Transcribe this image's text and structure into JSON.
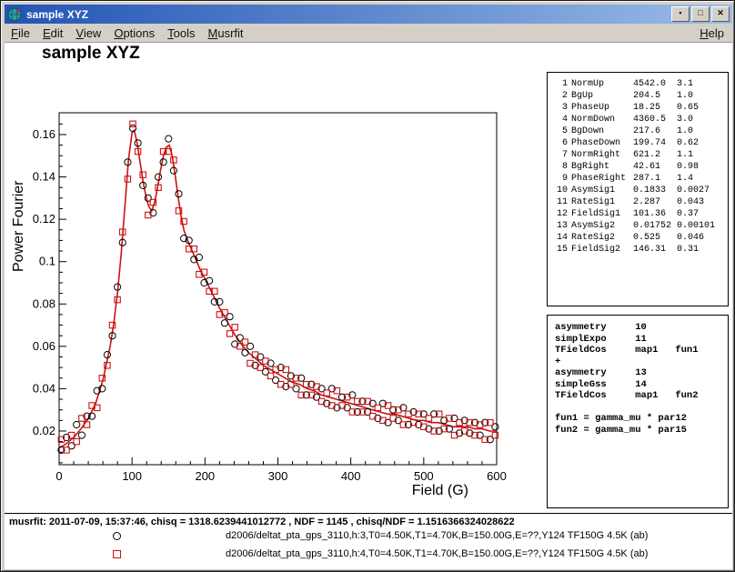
{
  "window": {
    "title": "sample XYZ"
  },
  "icons": {
    "minimize_glyph": "▪",
    "maximize_glyph": "□",
    "close_glyph": "✕"
  },
  "colors": {
    "titlebar_left": "#2254b4",
    "titlebar_right": "#9abce8",
    "accent_red": "#cc1111"
  },
  "menu": {
    "items": [
      "File",
      "Edit",
      "View",
      "Options",
      "Tools",
      "Musrfit"
    ],
    "help": "Help"
  },
  "canvas": {
    "title": "sample XYZ"
  },
  "params_panel": {
    "rows": [
      [
        "1",
        "NormUp",
        "4542.0",
        "3.1"
      ],
      [
        "2",
        "BgUp",
        "204.5",
        "1.0"
      ],
      [
        "3",
        "PhaseUp",
        "18.25",
        "0.65"
      ],
      [
        "4",
        "NormDown",
        "4360.5",
        "3.0"
      ],
      [
        "5",
        "BgDown",
        "217.6",
        "1.0"
      ],
      [
        "6",
        "PhaseDown",
        "199.74",
        "0.62"
      ],
      [
        "7",
        "NormRight",
        "621.2",
        "1.1"
      ],
      [
        "8",
        "BgRight",
        "42.61",
        "0.98"
      ],
      [
        "9",
        "PhaseRight",
        "287.1",
        "1.4"
      ],
      [
        "10",
        "AsymSig1",
        "0.1833",
        "0.0027"
      ],
      [
        "11",
        "RateSig1",
        "2.287",
        "0.043"
      ],
      [
        "12",
        "FieldSig1",
        "101.36",
        "0.37"
      ],
      [
        "13",
        "AsymSig2",
        "0.01752",
        "0.00101"
      ],
      [
        "14",
        "RateSig2",
        "0.525",
        "0.046"
      ],
      [
        "15",
        "FieldSig2",
        "146.31",
        "0.31"
      ]
    ]
  },
  "theory_panel": {
    "lines": [
      "asymmetry     10",
      "simplExpo     11",
      "TFieldCos     map1   fun1",
      "+",
      "asymmetry     13",
      "simpleGss     14",
      "TFieldCos     map1   fun2",
      "",
      "fun1 = gamma_mu * par12",
      "fun2 = gamma_mu * par15"
    ]
  },
  "status": {
    "text": "musrfit: 2011-07-09, 15:37:46, chisq = 1318.6239441012772 , NDF = 1145 , chisq/NDF = 1.1516366324028622"
  },
  "chart_data": {
    "type": "scatter",
    "title": "sample XYZ",
    "xlabel": "Field (G)",
    "ylabel": "Power Fourier",
    "xlim": [
      0,
      600
    ],
    "ylim": [
      0.0041,
      0.1703
    ],
    "x_ticks": [
      0,
      100,
      200,
      300,
      400,
      500,
      600
    ],
    "y_ticks": [
      0.02,
      0.04,
      0.06,
      0.08,
      0.1,
      0.12,
      0.14,
      0.16
    ],
    "y_tick_labels": [
      "0.02",
      "0.04",
      "0.06",
      "0.08",
      "0.1",
      "0.12",
      "0.14",
      "0.16"
    ],
    "grid": false,
    "legend_position": "bottom",
    "x": [
      3,
      10,
      17,
      24,
      31,
      38,
      45,
      52,
      59,
      66,
      73,
      80,
      87,
      94,
      101,
      108,
      115,
      122,
      129,
      136,
      143,
      150,
      157,
      164,
      171,
      178,
      185,
      192,
      199,
      206,
      213,
      220,
      227,
      234,
      241,
      248,
      255,
      262,
      269,
      276,
      283,
      290,
      297,
      304,
      311,
      318,
      325,
      332,
      339,
      346,
      353,
      360,
      367,
      374,
      381,
      388,
      395,
      402,
      409,
      416,
      423,
      430,
      437,
      444,
      451,
      458,
      465,
      472,
      479,
      486,
      493,
      500,
      507,
      514,
      521,
      528,
      535,
      542,
      549,
      556,
      563,
      570,
      577,
      584,
      591,
      598
    ],
    "series": [
      {
        "name": "d2006/deltat_pta_gps_3110,h:3,T0=4.50K,T1=4.70K,B=150.00G,E=??,Y124 TF150G 4.5K (ab)",
        "marker": "circle",
        "color": "#000000",
        "values": [
          0.011,
          0.017,
          0.013,
          0.023,
          0.018,
          0.027,
          0.027,
          0.039,
          0.04,
          0.056,
          0.065,
          0.088,
          0.109,
          0.147,
          0.163,
          0.156,
          0.136,
          0.13,
          0.123,
          0.14,
          0.147,
          0.158,
          0.143,
          0.132,
          0.111,
          0.11,
          0.101,
          0.102,
          0.09,
          0.091,
          0.081,
          0.081,
          0.071,
          0.074,
          0.061,
          0.064,
          0.057,
          0.06,
          0.051,
          0.055,
          0.048,
          0.052,
          0.044,
          0.05,
          0.041,
          0.046,
          0.04,
          0.045,
          0.037,
          0.042,
          0.036,
          0.04,
          0.033,
          0.04,
          0.031,
          0.036,
          0.031,
          0.037,
          0.029,
          0.034,
          0.029,
          0.033,
          0.026,
          0.033,
          0.024,
          0.03,
          0.025,
          0.031,
          0.023,
          0.029,
          0.023,
          0.028,
          0.021,
          0.028,
          0.02,
          0.025,
          0.021,
          0.026,
          0.019,
          0.025,
          0.019,
          0.024,
          0.018,
          0.024,
          0.016,
          0.022
        ]
      },
      {
        "name": "d2006/deltat_pta_gps_3110,h:4,T0=4.50K,T1=4.70K,B=150.00G,E=??,Y124 TF150G 4.5K (ab)",
        "marker": "square",
        "color": "#cc1111",
        "values": [
          0.016,
          0.011,
          0.018,
          0.015,
          0.026,
          0.023,
          0.032,
          0.031,
          0.045,
          0.051,
          0.07,
          0.082,
          0.114,
          0.139,
          0.165,
          0.152,
          0.141,
          0.122,
          0.128,
          0.135,
          0.152,
          0.152,
          0.148,
          0.124,
          0.119,
          0.106,
          0.106,
          0.094,
          0.095,
          0.086,
          0.086,
          0.075,
          0.076,
          0.066,
          0.069,
          0.06,
          0.062,
          0.052,
          0.056,
          0.05,
          0.053,
          0.046,
          0.049,
          0.042,
          0.049,
          0.042,
          0.045,
          0.037,
          0.042,
          0.037,
          0.041,
          0.034,
          0.038,
          0.032,
          0.039,
          0.032,
          0.036,
          0.029,
          0.034,
          0.029,
          0.034,
          0.027,
          0.031,
          0.025,
          0.032,
          0.026,
          0.03,
          0.023,
          0.028,
          0.024,
          0.028,
          0.022,
          0.026,
          0.02,
          0.028,
          0.021,
          0.026,
          0.018,
          0.024,
          0.02,
          0.024,
          0.018,
          0.023,
          0.016,
          0.024,
          0.018
        ]
      }
    ],
    "fit": {
      "color": "#cc1111",
      "x": [
        0,
        10,
        20,
        30,
        40,
        50,
        60,
        70,
        75,
        80,
        85,
        90,
        95,
        100,
        103,
        107,
        111,
        115,
        119,
        123,
        127,
        131,
        135,
        139,
        143,
        147,
        151,
        155,
        159,
        163,
        167,
        171,
        175,
        180,
        185,
        190,
        195,
        200,
        210,
        220,
        230,
        240,
        250,
        260,
        270,
        280,
        290,
        300,
        310,
        320,
        330,
        340,
        350,
        360,
        370,
        380,
        390,
        400,
        410,
        420,
        430,
        440,
        450,
        460,
        470,
        480,
        490,
        500,
        510,
        520,
        530,
        540,
        550,
        560,
        570,
        580,
        590,
        600
      ],
      "y": [
        0.012,
        0.014,
        0.017,
        0.021,
        0.026,
        0.033,
        0.044,
        0.06,
        0.071,
        0.085,
        0.103,
        0.125,
        0.148,
        0.161,
        0.162,
        0.156,
        0.147,
        0.138,
        0.131,
        0.126,
        0.124,
        0.128,
        0.135,
        0.143,
        0.15,
        0.154,
        0.155,
        0.15,
        0.141,
        0.131,
        0.122,
        0.115,
        0.111,
        0.107,
        0.103,
        0.099,
        0.095,
        0.092,
        0.085,
        0.078,
        0.072,
        0.066,
        0.061,
        0.057,
        0.054,
        0.051,
        0.049,
        0.047,
        0.045,
        0.043,
        0.042,
        0.04,
        0.039,
        0.037,
        0.036,
        0.035,
        0.034,
        0.033,
        0.032,
        0.031,
        0.03,
        0.029,
        0.028,
        0.028,
        0.027,
        0.026,
        0.025,
        0.025,
        0.024,
        0.024,
        0.023,
        0.022,
        0.022,
        0.022,
        0.021,
        0.021,
        0.02,
        0.02
      ]
    }
  }
}
